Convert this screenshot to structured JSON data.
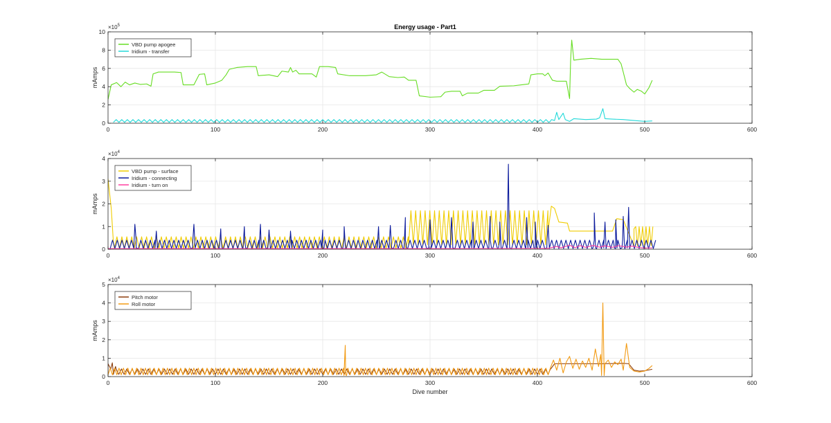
{
  "figure": {
    "title": "Energy usage - Part1"
  },
  "colors": {
    "vbd_apogee": "#66dd22",
    "iridium_transfer": "#22d9d9",
    "vbd_surface": "#f0cc00",
    "iridium_connecting": "#0b1a9c",
    "iridium_turnon": "#ff3f9f",
    "pitch_motor": "#8c3d0c",
    "roll_motor": "#f29a12",
    "grid": "#e6e6e6",
    "axis": "#262626"
  },
  "chart_data": [
    {
      "type": "line",
      "title": "Energy usage - Part1",
      "xlabel": "",
      "ylabel": "mAmps",
      "xlim": [
        0,
        600
      ],
      "ylim": [
        0,
        1000000
      ],
      "xticks": [
        0,
        100,
        200,
        300,
        400,
        500,
        600
      ],
      "yticks": [
        0,
        200000,
        400000,
        600000,
        800000,
        1000000
      ],
      "ytick_labels": [
        "0",
        "2",
        "4",
        "6",
        "8",
        "10"
      ],
      "exponent": "5",
      "grid": true,
      "legend_location": "top-left",
      "series": [
        {
          "name": "VBD pump apogee",
          "color_key": "vbd_apogee",
          "points": [
            [
              0,
              260000
            ],
            [
              3,
              420000
            ],
            [
              8,
              445000
            ],
            [
              12,
              400000
            ],
            [
              16,
              450000
            ],
            [
              20,
              420000
            ],
            [
              25,
              440000
            ],
            [
              30,
              425000
            ],
            [
              36,
              430000
            ],
            [
              40,
              405000
            ],
            [
              42,
              540000
            ],
            [
              47,
              560000
            ],
            [
              52,
              560000
            ],
            [
              62,
              560000
            ],
            [
              68,
              555000
            ],
            [
              70,
              420000
            ],
            [
              80,
              420000
            ],
            [
              85,
              535000
            ],
            [
              90,
              540000
            ],
            [
              92,
              420000
            ],
            [
              100,
              440000
            ],
            [
              106,
              470000
            ],
            [
              110,
              530000
            ],
            [
              113,
              590000
            ],
            [
              120,
              610000
            ],
            [
              130,
              620000
            ],
            [
              138,
              620000
            ],
            [
              140,
              520000
            ],
            [
              150,
              530000
            ],
            [
              158,
              510000
            ],
            [
              162,
              570000
            ],
            [
              168,
              560000
            ],
            [
              170,
              610000
            ],
            [
              172,
              560000
            ],
            [
              175,
              580000
            ],
            [
              178,
              540000
            ],
            [
              190,
              540000
            ],
            [
              194,
              505000
            ],
            [
              197,
              620000
            ],
            [
              205,
              620000
            ],
            [
              212,
              610000
            ],
            [
              214,
              540000
            ],
            [
              225,
              520000
            ],
            [
              240,
              520000
            ],
            [
              250,
              530000
            ],
            [
              255,
              560000
            ],
            [
              262,
              510000
            ],
            [
              270,
              500000
            ],
            [
              276,
              505000
            ],
            [
              280,
              470000
            ],
            [
              287,
              470000
            ],
            [
              290,
              300000
            ],
            [
              300,
              285000
            ],
            [
              310,
              290000
            ],
            [
              314,
              340000
            ],
            [
              320,
              350000
            ],
            [
              328,
              350000
            ],
            [
              330,
              300000
            ],
            [
              335,
              330000
            ],
            [
              345,
              330000
            ],
            [
              350,
              360000
            ],
            [
              360,
              360000
            ],
            [
              365,
              405000
            ],
            [
              378,
              410000
            ],
            [
              385,
              420000
            ],
            [
              392,
              430000
            ],
            [
              394,
              530000
            ],
            [
              400,
              540000
            ],
            [
              405,
              540000
            ],
            [
              407,
              520000
            ],
            [
              410,
              550000
            ],
            [
              414,
              470000
            ],
            [
              418,
              460000
            ],
            [
              427,
              460000
            ],
            [
              430,
              270000
            ],
            [
              431,
              700000
            ],
            [
              432,
              910000
            ],
            [
              434,
              690000
            ],
            [
              440,
              700000
            ],
            [
              450,
              710000
            ],
            [
              460,
              700000
            ],
            [
              475,
              700000
            ],
            [
              478,
              650000
            ],
            [
              480,
              560000
            ],
            [
              483,
              420000
            ],
            [
              486,
              380000
            ],
            [
              490,
              340000
            ],
            [
              493,
              370000
            ],
            [
              497,
              350000
            ],
            [
              500,
              320000
            ],
            [
              504,
              390000
            ],
            [
              507,
              470000
            ]
          ]
        },
        {
          "name": "Iridium - transfer",
          "color_key": "iridium_transfer",
          "spiky": {
            "start": 5,
            "end": 412,
            "period": 5.2,
            "base": 10000,
            "peak": 40000
          },
          "points": [
            [
              412,
              20000
            ],
            [
              416,
              30000
            ],
            [
              418,
              120000
            ],
            [
              420,
              40000
            ],
            [
              424,
              110000
            ],
            [
              426,
              40000
            ],
            [
              430,
              20000
            ],
            [
              434,
              50000
            ],
            [
              445,
              40000
            ],
            [
              455,
              45000
            ],
            [
              458,
              60000
            ],
            [
              461,
              160000
            ],
            [
              463,
              50000
            ],
            [
              470,
              45000
            ],
            [
              480,
              40000
            ],
            [
              490,
              30000
            ],
            [
              495,
              25000
            ],
            [
              500,
              20000
            ],
            [
              507,
              25000
            ]
          ]
        }
      ]
    },
    {
      "type": "line",
      "title": "",
      "xlabel": "",
      "ylabel": "mAmps",
      "xlim": [
        0,
        600
      ],
      "ylim": [
        0,
        40000
      ],
      "xticks": [
        0,
        100,
        200,
        300,
        400,
        500,
        600
      ],
      "yticks": [
        0,
        10000,
        20000,
        30000,
        40000
      ],
      "ytick_labels": [
        "0",
        "1",
        "2",
        "3",
        "4"
      ],
      "exponent": "4",
      "grid": true,
      "legend_location": "top-left",
      "series": [
        {
          "name": "VBD pump - surface",
          "color_key": "vbd_surface",
          "spiky_segments": [
            {
              "start": 6,
              "end": 280,
              "period": 4.6,
              "base": 300,
              "peak": 5500
            },
            {
              "start": 280,
              "end": 410,
              "period": 4.4,
              "base": 2000,
              "peak": 17000
            },
            {
              "start": 490,
              "end": 508,
              "period": 3.2,
              "base": 1500,
              "peak": 10000
            }
          ],
          "points": [
            [
              0,
              31000
            ],
            [
              3,
              18000
            ],
            [
              5,
              3000
            ],
            [
              6,
              1000
            ],
            [
              410,
              8000
            ],
            [
              413,
              19000
            ],
            [
              416,
              18000
            ],
            [
              420,
              12000
            ],
            [
              428,
              11500
            ],
            [
              430,
              8000
            ],
            [
              440,
              8000
            ],
            [
              460,
              8000
            ],
            [
              470,
              8000
            ],
            [
              474,
              13500
            ],
            [
              480,
              13000
            ],
            [
              490,
              9000
            ]
          ]
        },
        {
          "name": "Iridium - connecting",
          "color_key": "iridium_connecting",
          "spiky": {
            "start": 2,
            "end": 508,
            "period": 4.4,
            "base": 300,
            "peak": 4000
          },
          "spikes": [
            [
              25,
              11000
            ],
            [
              45,
              8000
            ],
            [
              80,
              11000
            ],
            [
              105,
              9000
            ],
            [
              127,
              10000
            ],
            [
              142,
              11000
            ],
            [
              150,
              8500
            ],
            [
              170,
              8000
            ],
            [
              200,
              8500
            ],
            [
              220,
              10000
            ],
            [
              252,
              10000
            ],
            [
              263,
              10500
            ],
            [
              277,
              14000
            ],
            [
              300,
              13000
            ],
            [
              320,
              14000
            ],
            [
              340,
              12000
            ],
            [
              356,
              14500
            ],
            [
              365,
              12000
            ],
            [
              373,
              37500
            ],
            [
              390,
              14000
            ],
            [
              398,
              12000
            ],
            [
              410,
              10500
            ],
            [
              453,
              16000
            ],
            [
              463,
              12000
            ],
            [
              473,
              13000
            ],
            [
              480,
              14500
            ],
            [
              485,
              18500
            ]
          ]
        },
        {
          "name": "Iridium - turn on",
          "color_key": "iridium_turnon",
          "points": [
            [
              0,
              300
            ],
            [
              100,
              300
            ],
            [
              200,
              300
            ],
            [
              300,
              300
            ],
            [
              410,
              400
            ],
            [
              418,
              1200
            ],
            [
              422,
              600
            ],
            [
              430,
              1800
            ],
            [
              435,
              700
            ],
            [
              440,
              1600
            ],
            [
              445,
              800
            ],
            [
              452,
              1700
            ],
            [
              458,
              900
            ],
            [
              463,
              1500
            ],
            [
              470,
              800
            ],
            [
              476,
              1600
            ],
            [
              483,
              900
            ],
            [
              488,
              1400
            ],
            [
              495,
              700
            ],
            [
              500,
              500
            ],
            [
              507,
              600
            ]
          ]
        }
      ]
    },
    {
      "type": "line",
      "title": "",
      "xlabel": "Dive number",
      "ylabel": "mAmps",
      "xlim": [
        0,
        600
      ],
      "ylim": [
        0,
        50000
      ],
      "xticks": [
        0,
        100,
        200,
        300,
        400,
        500,
        600
      ],
      "yticks": [
        0,
        10000,
        20000,
        30000,
        40000,
        50000
      ],
      "ytick_labels": [
        "0",
        "1",
        "2",
        "3",
        "4",
        "5"
      ],
      "exponent": "4",
      "grid": true,
      "legend_location": "top-left",
      "series": [
        {
          "name": "Pitch motor",
          "color_key": "pitch_motor",
          "spiky": {
            "start": 0,
            "end": 412,
            "period": 5.0,
            "base": 1200,
            "peak": 4200
          },
          "points": [
            [
              0,
              7000
            ],
            [
              4,
              7500
            ],
            [
              7,
              5500
            ],
            [
              412,
              4000
            ],
            [
              416,
              7000
            ],
            [
              425,
              7000
            ],
            [
              440,
              7000
            ],
            [
              460,
              7000
            ],
            [
              480,
              7200
            ],
            [
              485,
              7000
            ],
            [
              490,
              3500
            ],
            [
              495,
              3000
            ],
            [
              500,
              3200
            ],
            [
              507,
              4000
            ]
          ]
        },
        {
          "name": "Roll motor",
          "color_key": "roll_motor",
          "spiky": {
            "start": 0,
            "end": 412,
            "period": 4.1,
            "base": 1000,
            "peak": 4600
          },
          "spikes": [
            [
              221,
              17000
            ],
            [
              461,
              40000
            ]
          ],
          "points": [
            [
              412,
              4500
            ],
            [
              415,
              9000
            ],
            [
              418,
              3500
            ],
            [
              421,
              10000
            ],
            [
              424,
              2000
            ],
            [
              427,
              8000
            ],
            [
              430,
              11000
            ],
            [
              433,
              4500
            ],
            [
              436,
              9500
            ],
            [
              439,
              4000
            ],
            [
              442,
              8500
            ],
            [
              445,
              5000
            ],
            [
              448,
              10000
            ],
            [
              451,
              3500
            ],
            [
              454,
              15000
            ],
            [
              457,
              5500
            ],
            [
              459,
              12000
            ],
            [
              461,
              40000
            ],
            [
              463,
              7000
            ],
            [
              466,
              9000
            ],
            [
              469,
              5000
            ],
            [
              472,
              8000
            ],
            [
              475,
              6500
            ],
            [
              478,
              9500
            ],
            [
              480,
              3500
            ],
            [
              483,
              18000
            ],
            [
              486,
              5000
            ],
            [
              490,
              3000
            ],
            [
              495,
              2500
            ],
            [
              500,
              3000
            ],
            [
              504,
              4500
            ],
            [
              507,
              6000
            ]
          ]
        }
      ]
    }
  ]
}
